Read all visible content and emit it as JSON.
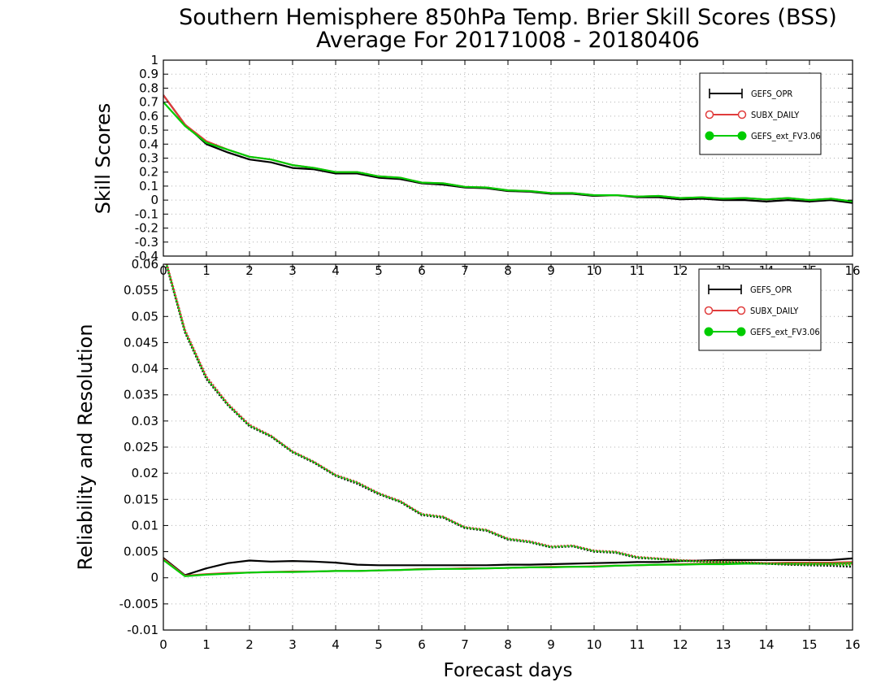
{
  "title_line1": "Southern Hemisphere 850hPa Temp. Brier Skill Scores (BSS)",
  "title_line2": "Average For 20171008 - 20180406",
  "xlabel": "Forecast days",
  "colors": {
    "GEFS_OPR": "#000000",
    "SUBX_DAILY": "#e03c3c",
    "GEFS_ext_FV3.06": "#00cc00"
  },
  "chart_data": [
    {
      "type": "line",
      "ylabel": "Skill Scores",
      "xlim": [
        0,
        16
      ],
      "ylim": [
        -0.4,
        1
      ],
      "xticks": [
        "0",
        "1",
        "2",
        "3",
        "4",
        "5",
        "6",
        "7",
        "8",
        "9",
        "10",
        "11",
        "12",
        "13",
        "14",
        "15",
        "16"
      ],
      "yticks": [
        "-0.4",
        "-0.3",
        "-0.2",
        "-0.1",
        "0",
        "0.1",
        "0.2",
        "0.3",
        "0.4",
        "0.5",
        "0.6",
        "0.7",
        "0.8",
        "0.9",
        "1"
      ],
      "grid": true,
      "legend": {
        "position": "top-right",
        "entries": [
          "GEFS_OPR",
          "SUBX_DAILY",
          "GEFS_ext_FV3.06"
        ]
      },
      "x": [
        0,
        0.5,
        1,
        1.5,
        2,
        2.5,
        3,
        3.5,
        4,
        4.5,
        5,
        5.5,
        6,
        6.5,
        7,
        7.5,
        8,
        8.5,
        9,
        9.5,
        10,
        10.5,
        11,
        11.5,
        12,
        12.5,
        13,
        13.5,
        14,
        14.5,
        15,
        15.5,
        16
      ],
      "series": [
        {
          "name": "GEFS_OPR",
          "style": "solid",
          "values": [
            0.75,
            0.54,
            0.4,
            0.34,
            0.29,
            0.27,
            0.23,
            0.22,
            0.19,
            0.19,
            0.16,
            0.15,
            0.12,
            0.11,
            0.09,
            0.085,
            0.065,
            0.06,
            0.045,
            0.045,
            0.03,
            0.035,
            0.02,
            0.02,
            0.005,
            0.01,
            0.0,
            0.0,
            -0.01,
            0.0,
            -0.01,
            0.0,
            -0.02
          ]
        },
        {
          "name": "SUBX_DAILY",
          "style": "solid",
          "values": [
            0.75,
            0.54,
            0.42,
            0.36,
            0.31,
            0.29,
            0.25,
            0.23,
            0.2,
            0.2,
            0.17,
            0.16,
            0.125,
            0.12,
            0.095,
            0.09,
            0.07,
            0.065,
            0.05,
            0.05,
            0.035,
            0.035,
            0.025,
            0.03,
            0.015,
            0.02,
            0.01,
            0.015,
            0.005,
            0.015,
            0.0,
            0.01,
            -0.01
          ]
        },
        {
          "name": "GEFS_ext_FV3.06",
          "style": "solid",
          "values": [
            0.7,
            0.53,
            0.41,
            0.36,
            0.31,
            0.29,
            0.25,
            0.23,
            0.2,
            0.2,
            0.17,
            0.16,
            0.125,
            0.12,
            0.095,
            0.09,
            0.07,
            0.065,
            0.05,
            0.05,
            0.035,
            0.035,
            0.025,
            0.03,
            0.015,
            0.02,
            0.01,
            0.015,
            0.005,
            0.015,
            0.0,
            0.01,
            -0.01
          ]
        }
      ]
    },
    {
      "type": "line",
      "ylabel": "Reliability and Resolution",
      "xlim": [
        0,
        16
      ],
      "ylim": [
        -0.01,
        0.06
      ],
      "xticks": [
        "0",
        "1",
        "2",
        "3",
        "4",
        "5",
        "6",
        "7",
        "8",
        "9",
        "10",
        "11",
        "12",
        "13",
        "14",
        "15",
        "16"
      ],
      "yticks": [
        "-0.01",
        "-0.005",
        "0",
        "0.005",
        "0.01",
        "0.015",
        "0.02",
        "0.025",
        "0.03",
        "0.035",
        "0.04",
        "0.045",
        "0.05",
        "0.055",
        "0.06"
      ],
      "grid": true,
      "legend": {
        "position": "top-right",
        "entries": [
          "GEFS_OPR",
          "SUBX_DAILY",
          "GEFS_ext_FV3.06"
        ]
      },
      "x": [
        0,
        0.5,
        1,
        1.5,
        2,
        2.5,
        3,
        3.5,
        4,
        4.5,
        5,
        5.5,
        6,
        6.5,
        7,
        7.5,
        8,
        8.5,
        9,
        9.5,
        10,
        10.5,
        11,
        11.5,
        12,
        12.5,
        13,
        13.5,
        14,
        14.5,
        15,
        15.5,
        16
      ],
      "series": [
        {
          "name": "GEFS_OPR reliability",
          "color_key": "GEFS_OPR",
          "style": "solid",
          "values": [
            0.0038,
            0.0005,
            0.0018,
            0.0028,
            0.0033,
            0.0031,
            0.0032,
            0.0031,
            0.0029,
            0.0025,
            0.0024,
            0.0024,
            0.0024,
            0.0024,
            0.0024,
            0.0024,
            0.0025,
            0.0025,
            0.0026,
            0.0027,
            0.0028,
            0.0029,
            0.003,
            0.003,
            0.0032,
            0.0033,
            0.0034,
            0.0034,
            0.0034,
            0.0034,
            0.0034,
            0.0034,
            0.0037
          ]
        },
        {
          "name": "SUBX_DAILY reliability",
          "color_key": "SUBX_DAILY",
          "style": "solid",
          "values": [
            0.0036,
            0.0004,
            0.0007,
            0.0009,
            0.001,
            0.0011,
            0.0012,
            0.0012,
            0.0013,
            0.0013,
            0.0014,
            0.0015,
            0.0017,
            0.0017,
            0.0018,
            0.0018,
            0.0019,
            0.002,
            0.0021,
            0.0021,
            0.0022,
            0.0023,
            0.0024,
            0.0025,
            0.0026,
            0.0027,
            0.0028,
            0.0028,
            0.0028,
            0.0029,
            0.0029,
            0.0029,
            0.003
          ]
        },
        {
          "name": "GEFS_ext_FV3.06 reliability",
          "color_key": "GEFS_ext_FV3.06",
          "style": "solid",
          "values": [
            0.0034,
            0.0003,
            0.0006,
            0.0008,
            0.001,
            0.0011,
            0.0011,
            0.0012,
            0.0013,
            0.0013,
            0.0014,
            0.0015,
            0.0016,
            0.0017,
            0.0017,
            0.0018,
            0.0019,
            0.002,
            0.002,
            0.0021,
            0.0021,
            0.0023,
            0.0024,
            0.0025,
            0.0025,
            0.0026,
            0.0026,
            0.0027,
            0.0027,
            0.0027,
            0.0027,
            0.0027,
            0.0028
          ]
        },
        {
          "name": "GEFS_OPR resolution",
          "color_key": "GEFS_OPR",
          "style": "dotted",
          "values": [
            0.062,
            0.047,
            0.038,
            0.033,
            0.029,
            0.027,
            0.024,
            0.022,
            0.0195,
            0.018,
            0.016,
            0.0145,
            0.012,
            0.0115,
            0.0095,
            0.009,
            0.0073,
            0.0068,
            0.0058,
            0.006,
            0.005,
            0.0048,
            0.0038,
            0.0036,
            0.0033,
            0.0031,
            0.003,
            0.0029,
            0.0027,
            0.0025,
            0.0024,
            0.0023,
            0.0021
          ]
        },
        {
          "name": "SUBX_DAILY resolution",
          "color_key": "SUBX_DAILY",
          "style": "dotted",
          "values": [
            0.0625,
            0.0475,
            0.0385,
            0.0333,
            0.0293,
            0.0272,
            0.0242,
            0.0222,
            0.0197,
            0.0183,
            0.0162,
            0.0147,
            0.0122,
            0.0117,
            0.0097,
            0.0092,
            0.0075,
            0.007,
            0.006,
            0.0062,
            0.0052,
            0.005,
            0.004,
            0.0037,
            0.0034,
            0.0032,
            0.0031,
            0.003,
            0.0028,
            0.0026,
            0.0026,
            0.0026,
            0.0026
          ]
        },
        {
          "name": "GEFS_ext_FV3.06 resolution",
          "color_key": "GEFS_ext_FV3.06",
          "style": "dotted",
          "values": [
            0.0622,
            0.0472,
            0.0382,
            0.0331,
            0.0291,
            0.0271,
            0.0241,
            0.0221,
            0.0196,
            0.0182,
            0.0161,
            0.0146,
            0.0121,
            0.0116,
            0.0096,
            0.0091,
            0.0074,
            0.0069,
            0.0059,
            0.0061,
            0.0051,
            0.0049,
            0.0039,
            0.0036,
            0.0033,
            0.0031,
            0.003,
            0.0029,
            0.0027,
            0.0026,
            0.0025,
            0.0025,
            0.0024
          ]
        }
      ]
    }
  ]
}
